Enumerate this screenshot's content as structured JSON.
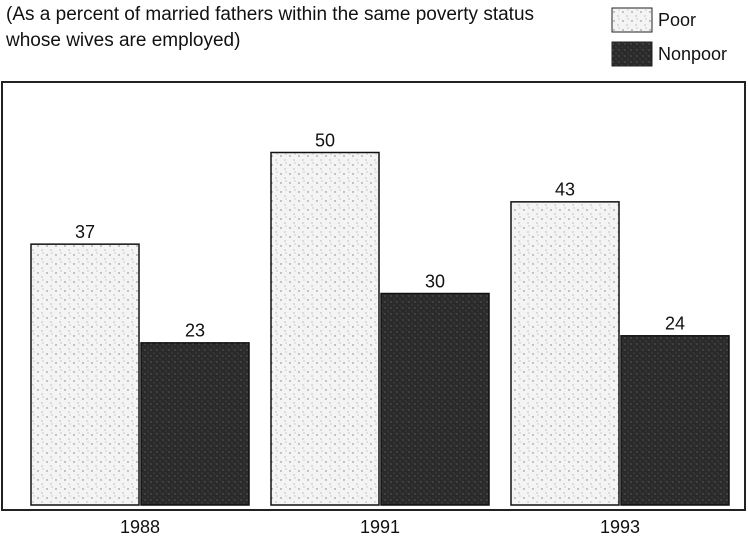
{
  "chart_data": {
    "type": "bar",
    "subtitle": "(As a percent of married fathers within the same poverty status whose wives are employed)",
    "categories": [
      "1988",
      "1991",
      "1993"
    ],
    "series": [
      {
        "name": "Poor",
        "color": "#f4f4f4",
        "values": [
          37,
          50,
          43
        ]
      },
      {
        "name": "Nonpoor",
        "color": "#2a2a2a",
        "values": [
          23,
          30,
          24
        ]
      }
    ],
    "ylim": [
      0,
      60
    ],
    "legend": "top-right"
  }
}
